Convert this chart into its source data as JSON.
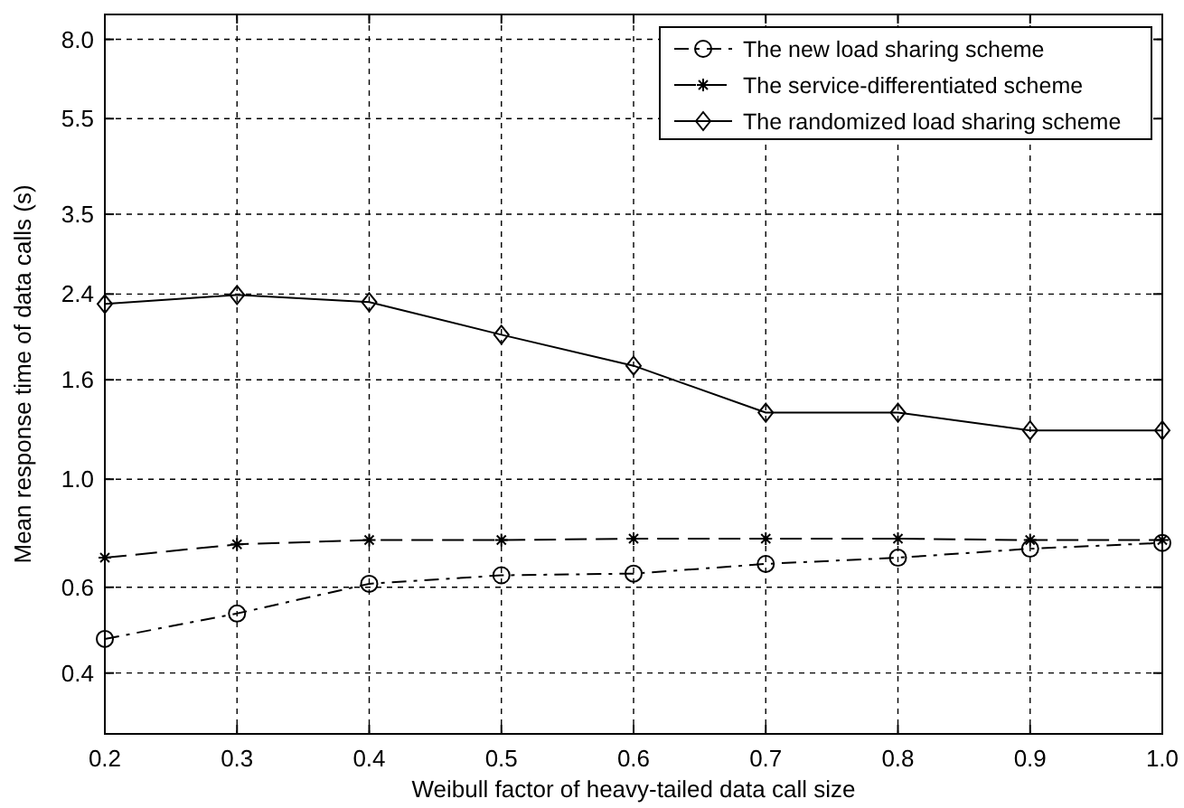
{
  "chart_data": {
    "type": "line",
    "xlabel": "Weibull factor of heavy-tailed data call size",
    "ylabel": "Mean response time of data calls (s)",
    "x": [
      0.2,
      0.3,
      0.4,
      0.5,
      0.6,
      0.7,
      0.8,
      0.9,
      1.0
    ],
    "series": [
      {
        "name": "The new load sharing scheme",
        "color": "#000000",
        "marker": "circle",
        "line_style": "dashdot",
        "values": [
          0.47,
          0.53,
          0.61,
          0.635,
          0.64,
          0.67,
          0.69,
          0.72,
          0.74
        ]
      },
      {
        "name": "The service-differentiated scheme",
        "color": "#000000",
        "marker": "cross",
        "line_style": "dashed",
        "values": [
          0.69,
          0.735,
          0.75,
          0.75,
          0.755,
          0.755,
          0.755,
          0.75,
          0.75
        ]
      },
      {
        "name": "The randomized load sharing scheme",
        "color": "#000000",
        "marker": "diamond",
        "line_style": "solid",
        "values": [
          2.29,
          2.39,
          2.31,
          1.98,
          1.71,
          1.37,
          1.37,
          1.26,
          1.26
        ]
      }
    ],
    "xlim": [
      0.2,
      1.0
    ],
    "xticks": [
      0.2,
      0.3,
      0.4,
      0.5,
      0.6,
      0.7,
      0.8,
      0.9,
      {
        "value": 1,
        "label": "1.0"
      }
    ],
    "ylim": [
      0.3,
      9
    ],
    "yticks": [
      0.4,
      0.6,
      {
        "value": 1,
        "label": "1.0"
      },
      1.6,
      2.4,
      3.5,
      5.5,
      {
        "value": 8,
        "label": "8.0"
      }
    ],
    "log": "y",
    "grid": true,
    "legend": "top right"
  }
}
